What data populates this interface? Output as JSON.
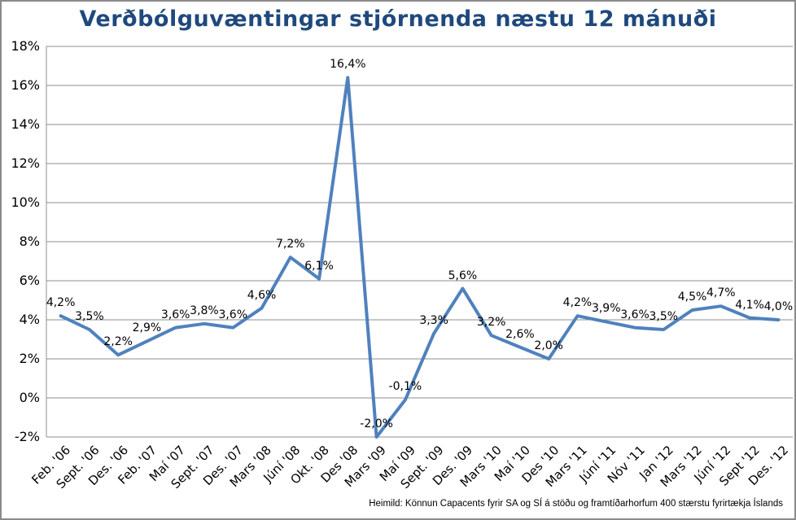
{
  "title": "Verðbólguvæntingar stjórnenda næstu 12 mánuði",
  "source": "Heimild: Könnun Capacents fyrir SA og SÍ á stöðu og framtíðarhorfum 400 stærstu fyrirtækja Íslands",
  "colors": {
    "line": "#4F81BD",
    "title_text": "#1F497D",
    "gridline": "#8F8F8F",
    "axis_line": "#8F8F8F",
    "label_text": "#000000",
    "frame_border": "#8A8A8A"
  },
  "chart_data": {
    "type": "line",
    "title": "Verðbólguvæntingar stjórnenda næstu 12 mánuði",
    "categories": [
      "Feb. '06",
      "Sept. '06",
      "Des. '06",
      "Feb. '07",
      "Maí '07",
      "Sept. '07",
      "Des. '07",
      "Mars '08",
      "Júní '08",
      "Okt. '08",
      "Des '08",
      "Mars '09",
      "Maí '09",
      "Sept. '09",
      "Des. '09",
      "Mars '10",
      "Maí '10",
      "Des '10",
      "Mars '11",
      "Júní '11",
      "Nóv '11",
      "Jan '12",
      "Mars '12",
      "Júní '12",
      "Sept '12",
      "Des. '12"
    ],
    "values": [
      4.2,
      3.5,
      2.2,
      2.9,
      3.6,
      3.8,
      3.6,
      4.6,
      7.2,
      6.1,
      16.4,
      -2.0,
      -0.1,
      3.3,
      5.6,
      3.2,
      2.6,
      2.0,
      4.2,
      3.9,
      3.6,
      3.5,
      4.5,
      4.7,
      4.1,
      4.0
    ],
    "data_labels": [
      "4,2%",
      "3,5%",
      "2,2%",
      "2,9%",
      "3,6%",
      "3,8%",
      "3,6%",
      "4,6%",
      "7,2%",
      "6,1%",
      "16,4%",
      "-2,0%",
      "-0,1%",
      "3,3%",
      "5,6%",
      "3,2%",
      "2,6%",
      "2,0%",
      "4,2%",
      "3,9%",
      "3,6%",
      "3,5%",
      "4,5%",
      "4,7%",
      "4,1%",
      "4,0%"
    ],
    "y_ticks": [
      "18%",
      "16%",
      "14%",
      "12%",
      "10%",
      "8%",
      "6%",
      "4%",
      "2%",
      "0%",
      "-2%"
    ],
    "y_tick_values": [
      18,
      16,
      14,
      12,
      10,
      8,
      6,
      4,
      2,
      0,
      -2
    ],
    "ylim": [
      -2,
      18
    ],
    "y_step": 2,
    "xlabel": "",
    "ylabel": "",
    "grid": "horizontal",
    "legend": "none",
    "source": "Heimild: Könnun Capacents fyrir SA og SÍ á stöðu og framtíðarhorfum 400 stærstu fyrirtækja Íslands"
  }
}
